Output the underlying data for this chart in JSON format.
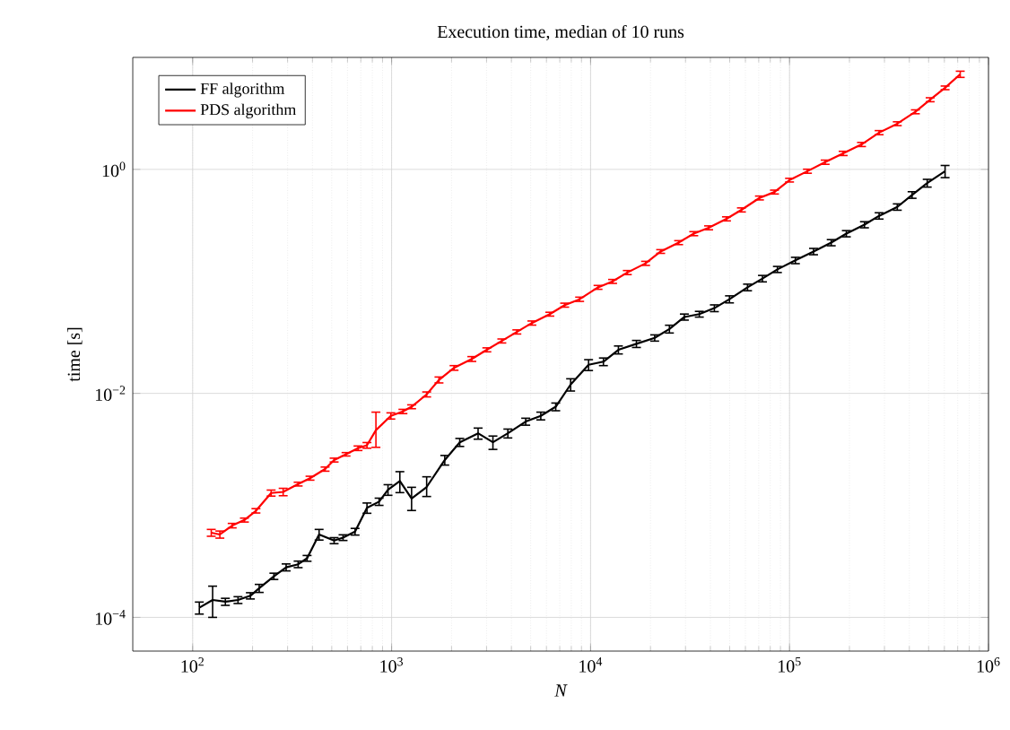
{
  "chart_data": {
    "type": "line",
    "title": "Execution time, median of 10 runs",
    "xlabel": "N",
    "ylabel": "time [s]",
    "log": "xy",
    "grid": true,
    "legend": "top left",
    "marker": "none",
    "line_style": "solid",
    "xlim": [
      50,
      1000000
    ],
    "ylim": [
      5e-05,
      10
    ],
    "xticks": [
      {
        "value": 100,
        "label": "10$^{2}$"
      },
      {
        "value": 1000,
        "label": "10$^{3}$"
      },
      {
        "value": 10000,
        "label": "10$^{4}$"
      },
      {
        "value": 100000,
        "label": "10$^{5}$"
      },
      {
        "value": 1000000,
        "label": "10$^{6}$"
      }
    ],
    "yticks": [
      {
        "value": 0.0001,
        "label": "10$^{−4}$"
      },
      {
        "value": 0.01,
        "label": "10$^{−2}$"
      },
      {
        "value": 1,
        "label": "10$^{0}$"
      }
    ],
    "series": [
      {
        "name": "FF algorithm",
        "color": "#000000",
        "x": [
          108,
          126,
          146,
          169,
          195,
          216,
          256,
          295,
          339,
          376,
          432,
          514,
          570,
          655,
          752,
          865,
          959,
          1100,
          1260,
          1500,
          1850,
          2200,
          2720,
          3230,
          3840,
          4720,
          5620,
          6680,
          7940,
          9770,
          11600,
          13800,
          17000,
          21000,
          24900,
          29600,
          35200,
          41900,
          49900,
          61500,
          73100,
          86900,
          107000,
          132000,
          162000,
          193000,
          238000,
          282000,
          348000,
          413000,
          492000,
          605000
        ],
        "values": [
          0.000122,
          0.000143,
          0.000138,
          0.000143,
          0.000156,
          0.000182,
          0.000233,
          0.00028,
          0.000298,
          0.000337,
          0.00055,
          0.000485,
          0.000516,
          0.000583,
          0.00095,
          0.00108,
          0.00138,
          0.00165,
          0.00115,
          0.00146,
          0.00254,
          0.00366,
          0.0044,
          0.00366,
          0.0044,
          0.0056,
          0.0063,
          0.0076,
          0.012,
          0.018,
          0.0192,
          0.0245,
          0.0277,
          0.0313,
          0.0376,
          0.0481,
          0.051,
          0.0577,
          0.0693,
          0.0885,
          0.106,
          0.128,
          0.154,
          0.185,
          0.222,
          0.267,
          0.321,
          0.385,
          0.462,
          0.592,
          0.755,
          0.964
        ],
        "errors": [
          1.5e-05,
          [
            0.0001,
            0.00019
          ],
          1e-05,
          1e-05,
          1e-05,
          1.5e-05,
          1.5e-05,
          2e-05,
          2e-05,
          2e-05,
          6e-05,
          3e-05,
          3e-05,
          4e-05,
          0.0001,
          8e-05,
          0.00015,
          [
            0.0013,
            0.002
          ],
          [
            0.0009,
            0.00145
          ],
          [
            0.0012,
            0.0018
          ],
          0.00025,
          0.0003,
          0.0005,
          0.0005,
          0.0004,
          0.0004,
          0.0005,
          0.0006,
          0.0015,
          0.002,
          0.0015,
          0.002,
          0.002,
          0.002,
          0.003,
          0.003,
          0.003,
          0.004,
          0.005,
          0.006,
          0.007,
          0.008,
          0.01,
          0.012,
          0.014,
          0.017,
          0.02,
          0.025,
          0.03,
          0.04,
          0.06,
          0.12
        ]
      },
      {
        "name": "PDS algorithm",
        "color": "#ff0000",
        "x": [
          124,
          137,
          158,
          182,
          208,
          248,
          285,
          339,
          389,
          463,
          514,
          590,
          678,
          752,
          834,
          991,
          1140,
          1260,
          1500,
          1730,
          2060,
          2530,
          3010,
          3580,
          4260,
          5070,
          6240,
          7410,
          8810,
          10900,
          12900,
          15300,
          18900,
          22500,
          27700,
          33000,
          39200,
          48200,
          57300,
          70600,
          84000,
          100000,
          123000,
          151000,
          186000,
          230000,
          282000,
          348000,
          429000,
          509000,
          605000,
          721000
        ],
        "values": [
          0.00057,
          0.00055,
          0.00066,
          0.00074,
          0.000895,
          0.00129,
          0.00132,
          0.00155,
          0.00175,
          0.00211,
          0.00254,
          0.00286,
          0.00324,
          0.00344,
          0.0047,
          0.0063,
          0.0069,
          0.0076,
          0.0098,
          0.0132,
          0.0169,
          0.0203,
          0.0245,
          0.0294,
          0.0354,
          0.0425,
          0.051,
          0.0614,
          0.0693,
          0.0885,
          0.1,
          0.12,
          0.145,
          0.185,
          0.222,
          0.267,
          0.301,
          0.362,
          0.435,
          0.556,
          0.628,
          0.802,
          0.964,
          1.16,
          1.39,
          1.67,
          2.13,
          2.56,
          3.27,
          4.19,
          5.35,
          7.08
        ],
        "errors": [
          4e-05,
          4e-05,
          3e-05,
          3e-05,
          4e-05,
          8e-05,
          0.0001,
          6e-05,
          7e-05,
          9e-05,
          0.0001,
          0.0001,
          0.00015,
          0.0002,
          [
            0.0033,
            0.0068
          ],
          0.0004,
          0.0003,
          0.0003,
          0.0005,
          0.0008,
          0.0008,
          0.001,
          0.001,
          0.0012,
          0.0015,
          0.0018,
          0.002,
          0.0025,
          0.003,
          0.0035,
          0.004,
          0.005,
          0.006,
          0.007,
          0.009,
          0.011,
          0.012,
          0.015,
          0.018,
          0.022,
          0.025,
          0.03,
          0.04,
          0.05,
          0.06,
          0.07,
          0.09,
          0.1,
          0.13,
          0.17,
          0.2,
          0.45
        ]
      }
    ]
  }
}
